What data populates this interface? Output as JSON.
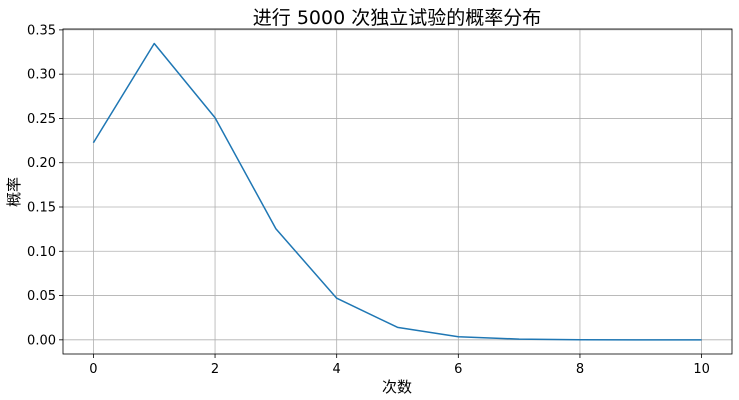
{
  "chart_data": {
    "type": "line",
    "title": "进行 5000 次独立试验的概率分布",
    "xlabel": "次数",
    "ylabel": "概率",
    "xlim": [
      -0.5,
      10.5
    ],
    "ylim": [
      -0.016,
      0.351
    ],
    "xticks": [
      "0",
      "2",
      "4",
      "6",
      "8",
      "10"
    ],
    "yticks": [
      "0.00",
      "0.05",
      "0.10",
      "0.15",
      "0.20",
      "0.25",
      "0.30",
      "0.35"
    ],
    "grid": true,
    "x": [
      0,
      1,
      2,
      3,
      4,
      5,
      6,
      7,
      8,
      9,
      10
    ],
    "series": [
      {
        "color": "#1f77b4",
        "values": [
          0.2226,
          0.3346,
          0.2508,
          0.1254,
          0.047,
          0.0141,
          0.0035,
          0.0008,
          0.0001,
          0.0,
          0.0
        ]
      }
    ]
  }
}
